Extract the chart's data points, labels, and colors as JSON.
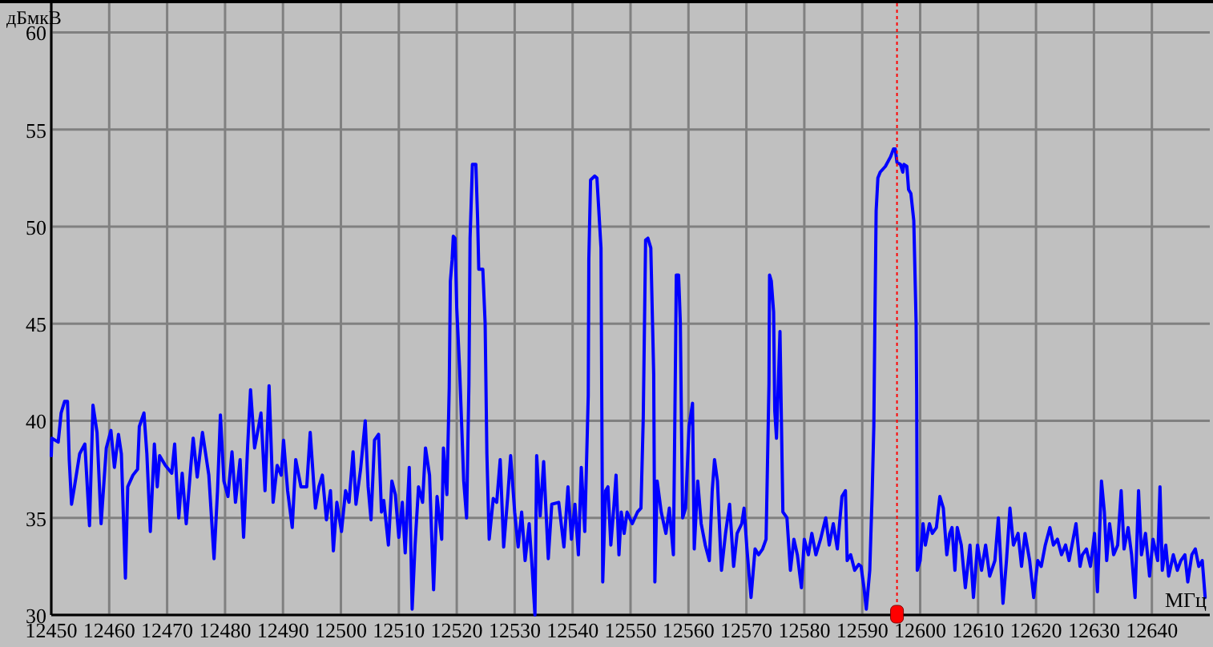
{
  "chart_data": {
    "type": "line",
    "xlabel": "МГц",
    "ylabel": "дБмкВ",
    "xlim": [
      12450,
      12650
    ],
    "ylim": [
      30,
      61.5
    ],
    "xticks": [
      12450,
      12460,
      12470,
      12480,
      12490,
      12500,
      12510,
      12520,
      12530,
      12540,
      12550,
      12560,
      12570,
      12580,
      12590,
      12600,
      12610,
      12620,
      12630,
      12640
    ],
    "yticks": [
      30,
      35,
      40,
      45,
      50,
      55,
      60
    ],
    "grid": true,
    "line_style": "solid",
    "ref_lines": [
      {
        "axis": "x",
        "value": 12596,
        "color": "#ff0000",
        "line_style": "dotted"
      }
    ],
    "series": [
      {
        "color": "#0000ff",
        "x": [
          12450,
          12450.1,
          12451.2,
          12451.7,
          12452.3,
          12452.8,
          12453.1,
          12453.5,
          12454.0,
          12454.9,
          12455.8,
          12456.6,
          12457.2,
          12457.9,
          12458.6,
          12459.5,
          12460.3,
          12460.9,
          12461.6,
          12462.1,
          12462.8,
          12463.2,
          12464.1,
          12464.9,
          12465.2,
          12466.0,
          12466.5,
          12467.1,
          12467.8,
          12468.3,
          12468.7,
          12469.7,
          12470.8,
          12471.3,
          12472.0,
          12472.6,
          12473.3,
          12474.1,
          12474.5,
          12475.2,
          12476.1,
          12477.2,
          12478.1,
          12478.7,
          12479.2,
          12479.8,
          12480.5,
          12481.2,
          12481.8,
          12482.6,
          12483.2,
          12483.9,
          12484.4,
          12485.1,
          12485.8,
          12486.2,
          12486.9,
          12487.6,
          12488.3,
          12489.0,
          12489.7,
          12490.1,
          12490.8,
          12491.6,
          12492.2,
          12493.1,
          12494.1,
          12494.7,
          12495.6,
          12496.2,
          12496.8,
          12497.5,
          12498.2,
          12498.7,
          12499.3,
          12500.1,
          12500.8,
          12501.4,
          12502.1,
          12502.6,
          12503.4,
          12504.2,
          12504.7,
          12505.2,
          12505.8,
          12506.5,
          12507.0,
          12507.4,
          12508.2,
          12508.8,
          12509.4,
          12510.0,
          12510.6,
          12511.1,
          12511.8,
          12512.3,
          12512.8,
          12513.4,
          12514.1,
          12514.6,
          12515.3,
          12516.0,
          12516.6,
          12517.4,
          12517.7,
          12518.3,
          12518.7,
          12518.9,
          12519.2,
          12519.4,
          12519.7,
          12520.0,
          12520.5,
          12521.2,
          12521.7,
          12522.1,
          12522.3,
          12522.7,
          12523.3,
          12523.6,
          12523.8,
          12524.5,
          12524.9,
          12525.2,
          12525.6,
          12526.3,
          12526.9,
          12527.5,
          12528.1,
          12528.8,
          12529.3,
          12530.0,
          12530.6,
          12531.2,
          12531.8,
          12532.5,
          12533.0,
          12533.5,
          12533.8,
          12534.4,
          12535.0,
          12535.8,
          12536.4,
          12537.6,
          12538.5,
          12539.2,
          12539.8,
          12540.4,
          12541.0,
          12541.5,
          12542.1,
          12542.7,
          12542.8,
          12543.1,
          12543.8,
          12544.2,
          12544.9,
          12545.2,
          12545.7,
          12546.1,
          12546.6,
          12547.1,
          12547.5,
          12548.0,
          12548.4,
          12548.9,
          12549.4,
          12550.3,
          12551.2,
          12551.8,
          12552.2,
          12552.6,
          12553.0,
          12553.5,
          12553.8,
          12554.0,
          12554.2,
          12554.6,
          12555.3,
          12556.1,
          12556.7,
          12557.4,
          12557.8,
          12557.9,
          12558.3,
          12558.6,
          12558.8,
          12559.0,
          12559.5,
          12560.1,
          12560.7,
          12561.0,
          12561.6,
          12562.2,
          12562.9,
          12563.6,
          12564.1,
          12564.5,
          12565.0,
          12565.7,
          12566.4,
          12567.1,
          12567.8,
          12568.4,
          12569.2,
          12569.6,
          12570.1,
          12570.8,
          12571.5,
          12572.1,
          12572.8,
          12573.4,
          12573.9,
          12574.0,
          12574.3,
          12574.7,
          12574.9,
          12575.2,
          12575.8,
          12576.3,
          12577.0,
          12577.6,
          12578.2,
          12578.8,
          12579.5,
          12580.0,
          12580.7,
          12581.3,
          12582.0,
          12582.8,
          12583.7,
          12584.3,
          12585.0,
          12585.7,
          12586.5,
          12587.1,
          12587.4,
          12588.0,
          12588.7,
          12589.4,
          12589.8,
          12590.3,
          12590.7,
          12591.3,
          12591.7,
          12592.0,
          12592.2,
          12592.4,
          12592.7,
          12593.1,
          12594.0,
          12594.9,
          12595.4,
          12595.7,
          12596.0,
          12596.6,
          12597.0,
          12597.2,
          12597.7,
          12598.0,
          12598.4,
          12598.9,
          12599.3,
          12599.4,
          12599.5,
          12600.0,
          12600.5,
          12600.9,
          12601.6,
          12602.1,
          12602.8,
          12603.4,
          12604.0,
          12604.6,
          12605.1,
          12605.5,
          12606.0,
          12606.4,
          12607.1,
          12607.8,
          12608.6,
          12609.2,
          12609.9,
          12610.6,
          12611.3,
          12612.0,
          12612.9,
          12613.5,
          12614.3,
          12614.9,
          12615.5,
          12616.1,
          12616.9,
          12617.5,
          12618.1,
          12618.9,
          12619.6,
          12620.3,
          12620.9,
          12621.6,
          12622.4,
          12623.0,
          12623.7,
          12624.4,
          12625.1,
          12625.7,
          12626.4,
          12626.9,
          12627.6,
          12628.0,
          12628.7,
          12629.4,
          12630.1,
          12630.6,
          12631.3,
          12631.8,
          12632.2,
          12632.7,
          12633.4,
          12634.1,
          12634.7,
          12635.2,
          12635.9,
          12636.5,
          12637.1,
          12637.7,
          12638.2,
          12638.9,
          12639.6,
          12640.2,
          12641.0,
          12641.4,
          12641.8,
          12642.4,
          12642.9,
          12643.7,
          12644.4,
          12645.0,
          12645.7,
          12646.2,
          12646.9,
          12647.5,
          12648.1,
          12648.7,
          12649.2
        ],
        "values": [
          38.2,
          39.1,
          38.9,
          40.4,
          41.0,
          41.0,
          38.0,
          35.7,
          36.6,
          38.3,
          38.8,
          34.6,
          40.8,
          39.4,
          34.7,
          38.6,
          39.5,
          37.6,
          39.3,
          38.3,
          31.9,
          36.6,
          37.2,
          37.5,
          39.7,
          40.4,
          38.3,
          34.3,
          38.8,
          36.6,
          38.2,
          37.7,
          37.3,
          38.8,
          35.0,
          37.3,
          34.7,
          37.7,
          39.1,
          37.1,
          39.4,
          37.2,
          32.9,
          36.4,
          40.3,
          36.9,
          36.1,
          38.4,
          35.8,
          38.0,
          34.0,
          38.7,
          41.6,
          38.6,
          39.7,
          40.4,
          36.4,
          41.8,
          35.8,
          37.7,
          37.2,
          39.0,
          36.4,
          34.5,
          38.0,
          36.6,
          36.6,
          39.4,
          35.5,
          36.6,
          37.2,
          34.9,
          36.4,
          33.3,
          35.8,
          34.3,
          36.4,
          35.8,
          38.4,
          35.7,
          37.5,
          40.0,
          36.6,
          34.9,
          39.0,
          39.3,
          35.3,
          35.9,
          33.6,
          36.9,
          36.2,
          34.0,
          35.8,
          33.2,
          37.6,
          30.3,
          33.6,
          36.6,
          35.8,
          38.6,
          37.2,
          31.3,
          36.1,
          33.9,
          38.6,
          36.2,
          41.7,
          47.2,
          48.3,
          49.5,
          49.4,
          45.8,
          42.6,
          36.9,
          35.0,
          41.9,
          49.4,
          53.2,
          53.2,
          50.4,
          47.8,
          47.8,
          45.0,
          38.3,
          33.9,
          36.0,
          35.8,
          38.0,
          33.5,
          36.1,
          38.2,
          35.3,
          33.5,
          35.3,
          32.8,
          34.7,
          32.5,
          30.0,
          38.2,
          35.1,
          37.9,
          32.9,
          35.7,
          35.8,
          33.5,
          36.6,
          33.9,
          35.7,
          33.1,
          37.6,
          34.3,
          41.3,
          48.3,
          52.4,
          52.6,
          52.5,
          48.9,
          31.7,
          36.4,
          36.6,
          33.6,
          35.5,
          37.2,
          33.1,
          35.3,
          34.2,
          35.3,
          34.7,
          35.3,
          35.5,
          40.2,
          49.3,
          49.4,
          48.9,
          45.0,
          42.4,
          31.7,
          36.9,
          35.3,
          34.2,
          35.5,
          33.1,
          44.3,
          47.5,
          47.5,
          45.0,
          39.7,
          35.0,
          35.5,
          39.7,
          40.9,
          33.4,
          36.9,
          34.7,
          33.6,
          32.8,
          36.4,
          38.0,
          36.9,
          32.3,
          34.2,
          35.7,
          32.5,
          34.2,
          34.7,
          35.5,
          33.4,
          30.9,
          33.4,
          33.1,
          33.4,
          33.9,
          41.9,
          47.5,
          47.2,
          45.6,
          40.5,
          39.1,
          44.6,
          35.3,
          35.0,
          32.3,
          33.9,
          33.1,
          31.4,
          33.9,
          33.1,
          34.2,
          33.1,
          33.9,
          35.0,
          33.6,
          34.7,
          33.4,
          36.1,
          36.4,
          32.8,
          33.1,
          32.3,
          32.6,
          32.5,
          31.4,
          30.3,
          32.3,
          36.1,
          39.7,
          45.6,
          50.8,
          52.5,
          52.8,
          53.1,
          53.6,
          54.0,
          54.0,
          53.3,
          53.2,
          52.8,
          53.2,
          53.1,
          51.9,
          51.7,
          50.3,
          45.0,
          41.3,
          32.3,
          32.8,
          34.7,
          33.6,
          34.7,
          34.2,
          34.5,
          36.1,
          35.5,
          33.1,
          34.2,
          34.5,
          32.3,
          34.5,
          33.6,
          31.4,
          33.6,
          30.9,
          33.6,
          32.3,
          33.6,
          32.0,
          32.8,
          35.0,
          30.6,
          32.8,
          35.5,
          33.6,
          34.2,
          32.5,
          34.2,
          32.8,
          30.9,
          32.8,
          32.5,
          33.6,
          34.5,
          33.6,
          33.9,
          33.1,
          33.6,
          32.8,
          33.9,
          34.7,
          32.5,
          33.1,
          33.4,
          32.5,
          34.2,
          31.2,
          36.9,
          35.3,
          32.8,
          34.7,
          33.1,
          33.6,
          36.4,
          33.4,
          34.5,
          33.1,
          30.9,
          36.4,
          33.1,
          34.2,
          32.0,
          33.9,
          32.8,
          36.6,
          32.3,
          33.6,
          32.0,
          33.1,
          32.3,
          32.8,
          33.1,
          31.7,
          33.1,
          33.4,
          32.5,
          32.8,
          30.9
        ]
      }
    ]
  }
}
